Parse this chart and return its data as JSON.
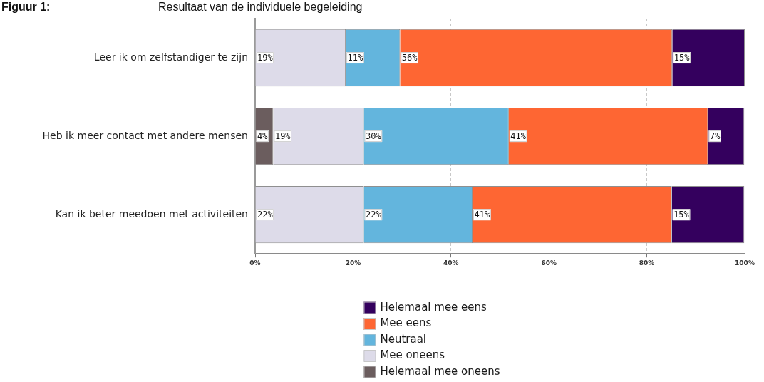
{
  "chart_data": {
    "type": "bar",
    "orientation": "horizontal",
    "stacked": true,
    "title": "Figuur 1:",
    "subtitle": "Resultaat van de individuele begeleiding",
    "categories": [
      "Leer ik om zelfstandiger te zijn",
      "Heb ik meer contact met andere mensen",
      "Kan ik beter meedoen met activiteiten"
    ],
    "series": [
      {
        "name": "Helemaal mee oneens",
        "color": "#6b5d5e",
        "values": [
          null,
          3.7,
          null
        ],
        "value_labels": [
          null,
          "4%",
          null
        ]
      },
      {
        "name": "Mee oneens",
        "color": "#dddbe9",
        "values": [
          18.5,
          18.5,
          22.2
        ],
        "value_labels": [
          "19%",
          "19%",
          "22%"
        ]
      },
      {
        "name": "Neutraal",
        "color": "#63b5dd",
        "values": [
          11.1,
          29.6,
          22.2
        ],
        "value_labels": [
          "11%",
          "30%",
          "22%"
        ]
      },
      {
        "name": "Mee eens",
        "color": "#fe6633",
        "values": [
          55.6,
          40.7,
          40.7
        ],
        "value_labels": [
          "56%",
          "41%",
          "41%"
        ]
      },
      {
        "name": "Helemaal mee eens",
        "color": "#34005e",
        "values": [
          14.8,
          7.4,
          14.8
        ],
        "value_labels": [
          "15%",
          "7%",
          "15%"
        ]
      }
    ],
    "xlim": [
      0,
      100
    ],
    "xticks": [
      {
        "value": 0,
        "label": "0%"
      },
      {
        "value": 20,
        "label": "20%"
      },
      {
        "value": 40,
        "label": "40%"
      },
      {
        "value": 60,
        "label": "60%"
      },
      {
        "value": 80,
        "label": "80%"
      },
      {
        "value": 100,
        "label": "100%"
      }
    ],
    "grid": "x",
    "legend": "bottom"
  }
}
